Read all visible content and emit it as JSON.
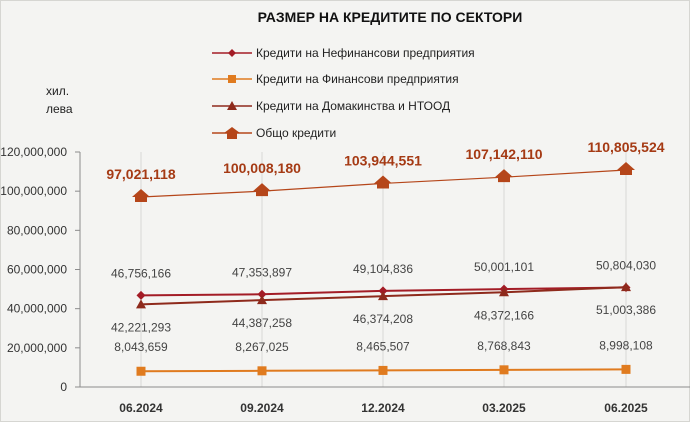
{
  "chart_data": {
    "type": "line",
    "title": "РАЗМЕР НА КРЕДИТИТЕ ПО СЕКТОРИ",
    "ylabel": "хил. лева",
    "xlabel": "",
    "categories": [
      "06.2024",
      "09.2024",
      "12.2024",
      "03.2025",
      "06.2025"
    ],
    "ylim": [
      0,
      120000000
    ],
    "yticks": [
      0,
      20000000,
      40000000,
      60000000,
      80000000,
      100000000,
      120000000
    ],
    "ytick_labels": [
      "0",
      "20,000,000",
      "40,000,000",
      "60,000,000",
      "80,000,000",
      "100,000,000",
      "120,000,000"
    ],
    "grid": "vertical",
    "legend_position": "top",
    "series": [
      {
        "name": "Кредити на Нефинансови предприятия",
        "color": "#a31c26",
        "marker": "diamond",
        "values": [
          46756166,
          47353897,
          49104836,
          50001101,
          50804030
        ],
        "labels": [
          "46,756,166",
          "47,353,897",
          "49,104,836",
          "50,001,101",
          "50,804,030"
        ]
      },
      {
        "name": "Кредити на Финансови предприятия",
        "color": "#e07b1f",
        "marker": "square",
        "values": [
          8043659,
          8267025,
          8465507,
          8768843,
          8998108
        ],
        "labels": [
          "8,043,659",
          "8,267,025",
          "8,465,507",
          "8,768,843",
          "8,998,108"
        ]
      },
      {
        "name": "Кредити на Домакинства и НТООД",
        "color": "#8e2a1c",
        "marker": "triangle",
        "values": [
          42221293,
          44387258,
          46374208,
          48372166,
          51003386
        ],
        "labels": [
          "42,221,293",
          "44,387,258",
          "46,374,208",
          "48,372,166",
          "51,003,386"
        ]
      },
      {
        "name": "Общо кредити",
        "color": "#b5461a",
        "marker": "house",
        "values": [
          97021118,
          100008180,
          103944551,
          107142110,
          110805524
        ],
        "labels": [
          "97,021,118",
          "100,008,180",
          "103,944,551",
          "107,142,110",
          "110,805,524"
        ]
      }
    ]
  }
}
